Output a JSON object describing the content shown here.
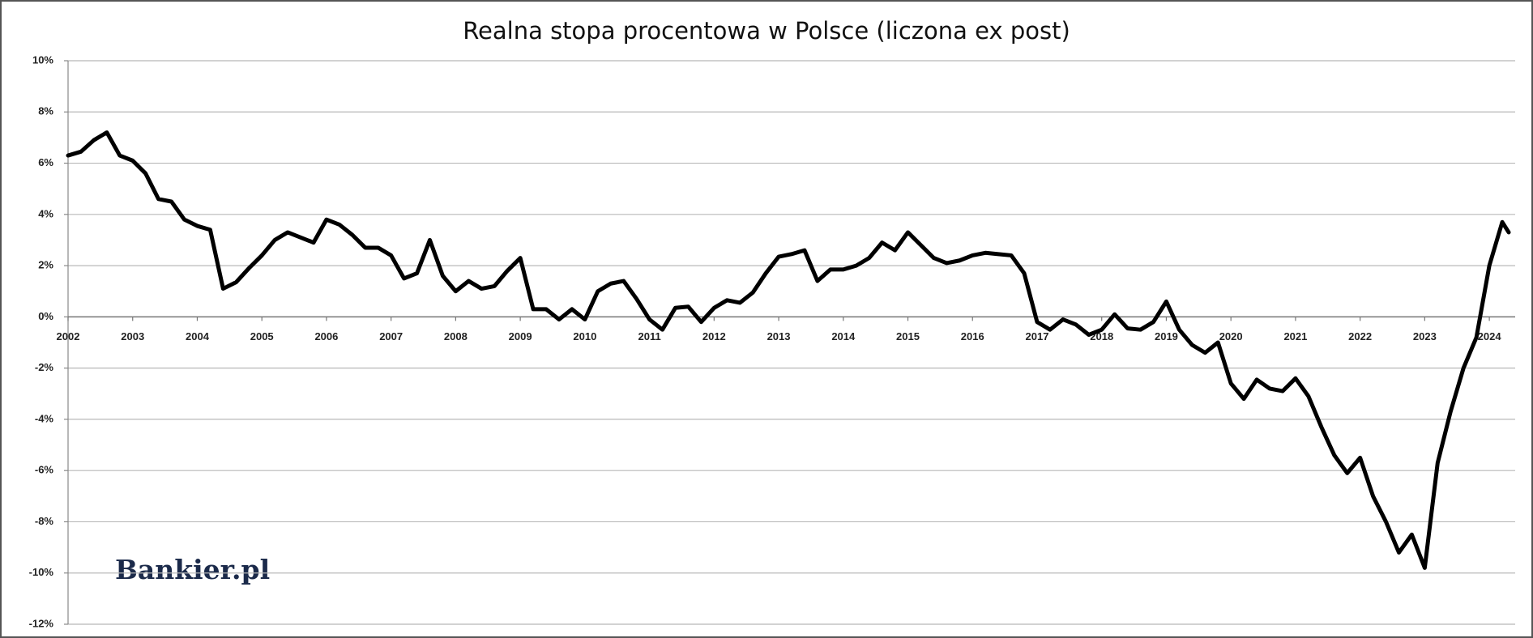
{
  "chart_data": {
    "type": "line",
    "title": "Realna stopa procentowa w Polsce (liczona ex post)",
    "logo": "Bankier.pl",
    "color": "#000000",
    "grid": true,
    "x": [
      2002.0,
      2002.2,
      2002.4,
      2002.6,
      2002.8,
      2003.0,
      2003.2,
      2003.4,
      2003.6,
      2003.8,
      2004.0,
      2004.2,
      2004.4,
      2004.6,
      2004.8,
      2005.0,
      2005.2,
      2005.4,
      2005.6,
      2005.8,
      2006.0,
      2006.2,
      2006.4,
      2006.6,
      2006.8,
      2007.0,
      2007.2,
      2007.4,
      2007.6,
      2007.8,
      2008.0,
      2008.2,
      2008.4,
      2008.6,
      2008.8,
      2009.0,
      2009.2,
      2009.4,
      2009.6,
      2009.8,
      2010.0,
      2010.2,
      2010.4,
      2010.6,
      2010.8,
      2011.0,
      2011.2,
      2011.4,
      2011.6,
      2011.8,
      2012.0,
      2012.2,
      2012.4,
      2012.6,
      2012.8,
      2013.0,
      2013.2,
      2013.4,
      2013.6,
      2013.8,
      2014.0,
      2014.2,
      2014.4,
      2014.6,
      2014.8,
      2015.0,
      2015.2,
      2015.4,
      2015.6,
      2015.8,
      2016.0,
      2016.2,
      2016.4,
      2016.6,
      2016.8,
      2017.0,
      2017.2,
      2017.4,
      2017.6,
      2017.8,
      2018.0,
      2018.2,
      2018.4,
      2018.6,
      2018.8,
      2019.0,
      2019.2,
      2019.4,
      2019.6,
      2019.8,
      2020.0,
      2020.2,
      2020.4,
      2020.6,
      2020.8,
      2021.0,
      2021.2,
      2021.4,
      2021.6,
      2021.8,
      2022.0,
      2022.2,
      2022.4,
      2022.6,
      2022.8,
      2023.0,
      2023.2,
      2023.4,
      2023.6,
      2023.8,
      2024.0,
      2024.2,
      2024.3
    ],
    "values": [
      6.3,
      6.45,
      6.9,
      7.2,
      6.3,
      6.1,
      5.6,
      4.6,
      4.5,
      3.8,
      3.55,
      3.4,
      1.1,
      1.35,
      1.9,
      2.4,
      3.0,
      3.3,
      3.1,
      2.9,
      3.8,
      3.6,
      3.2,
      2.7,
      2.7,
      2.4,
      1.5,
      1.7,
      3.0,
      1.6,
      1.0,
      1.4,
      1.1,
      1.2,
      1.8,
      2.3,
      0.3,
      0.3,
      -0.1,
      0.3,
      -0.1,
      1.0,
      1.3,
      1.4,
      0.7,
      -0.1,
      -0.5,
      0.35,
      0.4,
      -0.2,
      0.35,
      0.65,
      0.55,
      0.95,
      1.7,
      2.35,
      2.45,
      2.6,
      1.4,
      1.85,
      1.85,
      2.0,
      2.3,
      2.9,
      2.6,
      3.3,
      2.8,
      2.3,
      2.1,
      2.2,
      2.4,
      2.5,
      2.45,
      2.4,
      1.7,
      -0.2,
      -0.5,
      -0.1,
      -0.3,
      -0.7,
      -0.5,
      0.1,
      -0.45,
      -0.5,
      -0.2,
      0.6,
      -0.5,
      -1.1,
      -1.4,
      -1.0,
      -2.6,
      -3.2,
      -2.45,
      -2.8,
      -2.9,
      -2.4,
      -3.1,
      -4.3,
      -5.4,
      -6.1,
      -5.5,
      -7.0,
      -8.0,
      -9.2,
      -8.5,
      -9.8,
      -5.7,
      -3.7,
      -2.0,
      -0.8,
      2.0,
      3.7,
      3.3
    ],
    "xlim": [
      2002,
      2024.4
    ],
    "xticks": [
      2002,
      2003,
      2004,
      2005,
      2006,
      2007,
      2008,
      2009,
      2010,
      2011,
      2012,
      2013,
      2014,
      2015,
      2016,
      2017,
      2018,
      2019,
      2020,
      2021,
      2022,
      2023,
      2024
    ],
    "ylim": [
      -12,
      10
    ],
    "yticks": [
      {
        "value": -12,
        "label": "-12%"
      },
      {
        "value": -10,
        "label": "-10%"
      },
      {
        "value": -8,
        "label": "-8%"
      },
      {
        "value": -6,
        "label": "-6%"
      },
      {
        "value": -4,
        "label": "-4%"
      },
      {
        "value": -2,
        "label": "-2%"
      },
      {
        "value": 0,
        "label": "0%"
      },
      {
        "value": 2,
        "label": "2%"
      },
      {
        "value": 4,
        "label": "4%"
      },
      {
        "value": 6,
        "label": "6%"
      },
      {
        "value": 8,
        "label": "8%"
      },
      {
        "value": 10,
        "label": "10%"
      }
    ]
  }
}
